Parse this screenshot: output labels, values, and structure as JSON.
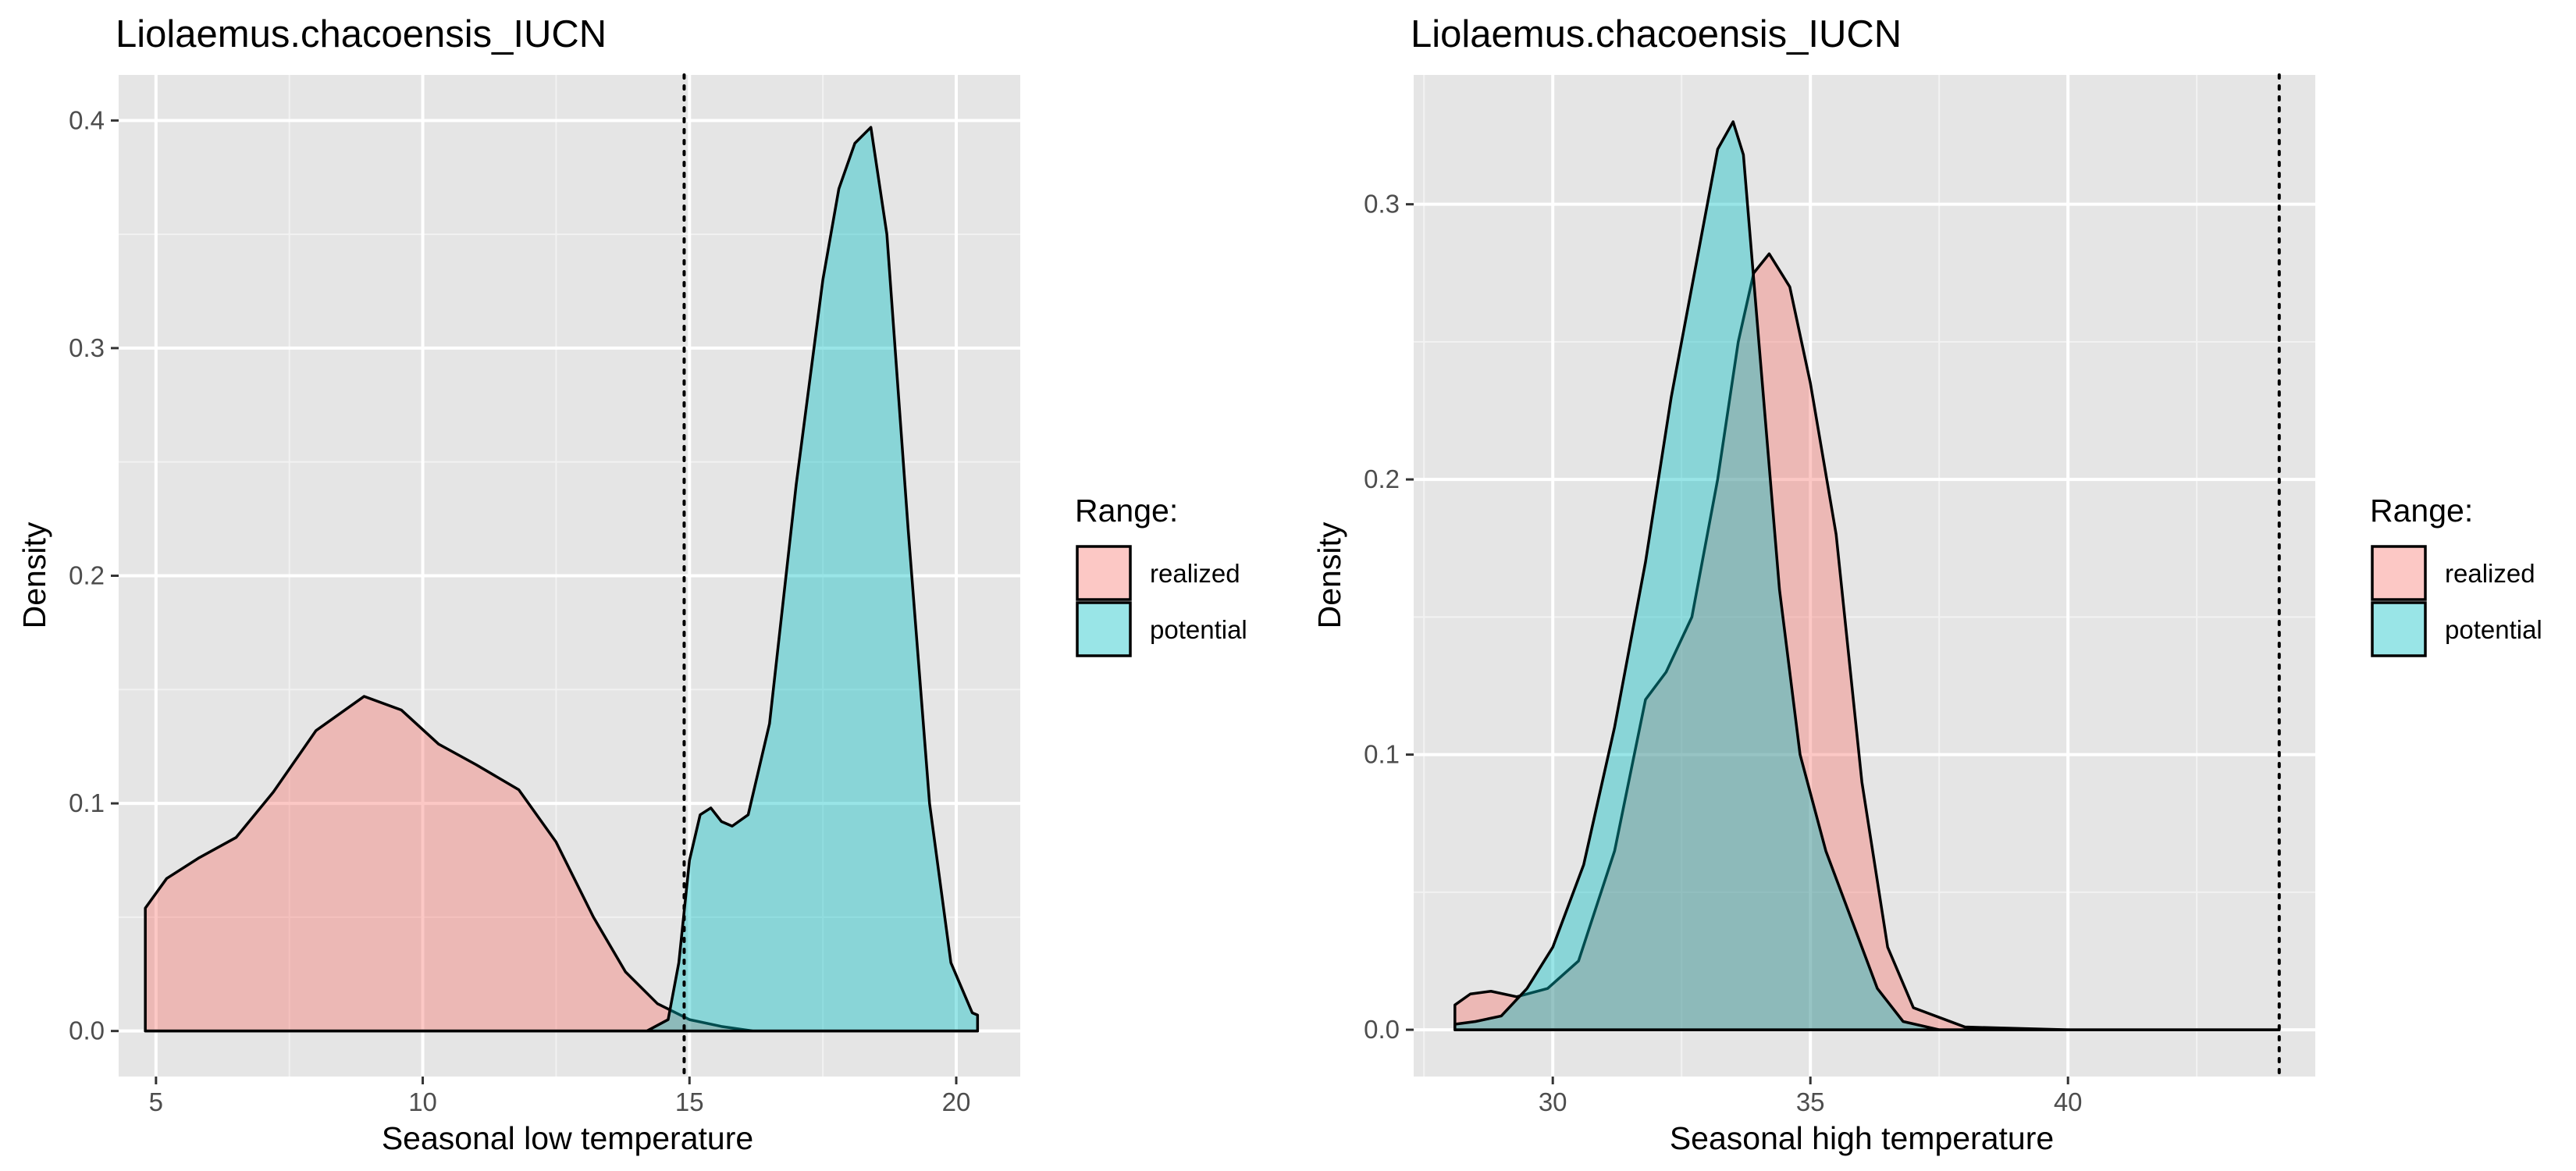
{
  "colors": {
    "panel_background": "#e5e5e5",
    "grid_major": "#ffffff",
    "grid_minor": "#f2f2f2",
    "realized_fill": "#f8766d",
    "potential_fill": "#00bfc4",
    "fill_alpha": 0.4,
    "outline": "#000000"
  },
  "chart_data": [
    {
      "type": "area",
      "title": "Liolaemus.chacoensis_IUCN",
      "xlabel": "Seasonal low temperature",
      "ylabel": "Density",
      "xlim": [
        4.3,
        21.2
      ],
      "ylim": [
        -0.02,
        0.42
      ],
      "x_ticks": [
        5,
        10,
        15,
        20
      ],
      "x_tick_labels": [
        "5",
        "10",
        "15",
        "20"
      ],
      "y_ticks": [
        0.0,
        0.1,
        0.2,
        0.3,
        0.4
      ],
      "y_tick_labels": [
        "0.0",
        "0.1",
        "0.2",
        "0.3",
        "0.4"
      ],
      "grid": true,
      "vline": {
        "x": 14.9,
        "style": "dotted"
      },
      "legend": {
        "title": "Range:",
        "position": "right",
        "entries": [
          "realized",
          "potential"
        ]
      },
      "series": [
        {
          "name": "realized",
          "x": [
            4.8,
            5.2,
            5.8,
            6.5,
            7.2,
            8.0,
            8.9,
            9.6,
            10.3,
            11.0,
            11.8,
            12.5,
            13.2,
            13.8,
            14.4,
            15.0,
            15.6,
            16.2,
            17.0,
            18.0,
            20.4
          ],
          "y": [
            0.054,
            0.067,
            0.076,
            0.085,
            0.105,
            0.132,
            0.147,
            0.141,
            0.126,
            0.117,
            0.106,
            0.083,
            0.05,
            0.026,
            0.012,
            0.005,
            0.002,
            0.0,
            0.0,
            0.0,
            0.0
          ]
        },
        {
          "name": "potential",
          "x": [
            4.8,
            10.0,
            14.2,
            14.6,
            14.8,
            15.0,
            15.2,
            15.4,
            15.6,
            15.8,
            16.1,
            16.5,
            17.0,
            17.5,
            17.8,
            18.1,
            18.4,
            18.7,
            19.1,
            19.5,
            19.9,
            20.3,
            20.4
          ],
          "y": [
            0.0,
            0.0,
            0.0,
            0.005,
            0.03,
            0.075,
            0.095,
            0.098,
            0.092,
            0.09,
            0.095,
            0.135,
            0.24,
            0.33,
            0.37,
            0.39,
            0.397,
            0.35,
            0.22,
            0.1,
            0.03,
            0.008,
            0.007
          ]
        }
      ]
    },
    {
      "type": "area",
      "title": "Liolaemus.chacoensis_IUCN",
      "xlabel": "Seasonal high temperature",
      "ylabel": "Density",
      "xlim": [
        27.3,
        44.8
      ],
      "ylim": [
        -0.017,
        0.347
      ],
      "x_ticks": [
        30,
        35,
        40
      ],
      "x_tick_labels": [
        "30",
        "35",
        "40"
      ],
      "y_ticks": [
        0.0,
        0.1,
        0.2,
        0.3
      ],
      "y_tick_labels": [
        "0.0",
        "0.1",
        "0.2",
        "0.3"
      ],
      "grid": true,
      "vline": {
        "x": 44.1,
        "style": "dotted"
      },
      "legend": {
        "title": "Range:",
        "position": "right",
        "entries": [
          "realized",
          "potential"
        ]
      },
      "series": [
        {
          "name": "realized",
          "x": [
            28.1,
            28.4,
            28.8,
            29.3,
            29.9,
            30.5,
            31.2,
            31.8,
            32.2,
            32.7,
            33.2,
            33.6,
            33.9,
            34.2,
            34.6,
            35.0,
            35.5,
            36.0,
            36.5,
            37.0,
            38.0,
            40.0,
            44.1
          ],
          "y": [
            0.009,
            0.013,
            0.014,
            0.012,
            0.015,
            0.025,
            0.065,
            0.12,
            0.13,
            0.15,
            0.2,
            0.25,
            0.275,
            0.282,
            0.27,
            0.235,
            0.18,
            0.09,
            0.03,
            0.008,
            0.001,
            0.0,
            0.0
          ]
        },
        {
          "name": "potential",
          "x": [
            28.1,
            28.5,
            29.0,
            29.5,
            30.0,
            30.6,
            31.2,
            31.8,
            32.3,
            32.8,
            33.2,
            33.5,
            33.7,
            34.0,
            34.4,
            34.8,
            35.3,
            35.8,
            36.3,
            36.8,
            37.5,
            40.0,
            44.1
          ],
          "y": [
            0.002,
            0.003,
            0.005,
            0.015,
            0.03,
            0.06,
            0.11,
            0.17,
            0.23,
            0.28,
            0.32,
            0.33,
            0.318,
            0.25,
            0.16,
            0.1,
            0.065,
            0.04,
            0.015,
            0.003,
            0.0,
            0.0,
            0.0
          ]
        }
      ]
    }
  ]
}
